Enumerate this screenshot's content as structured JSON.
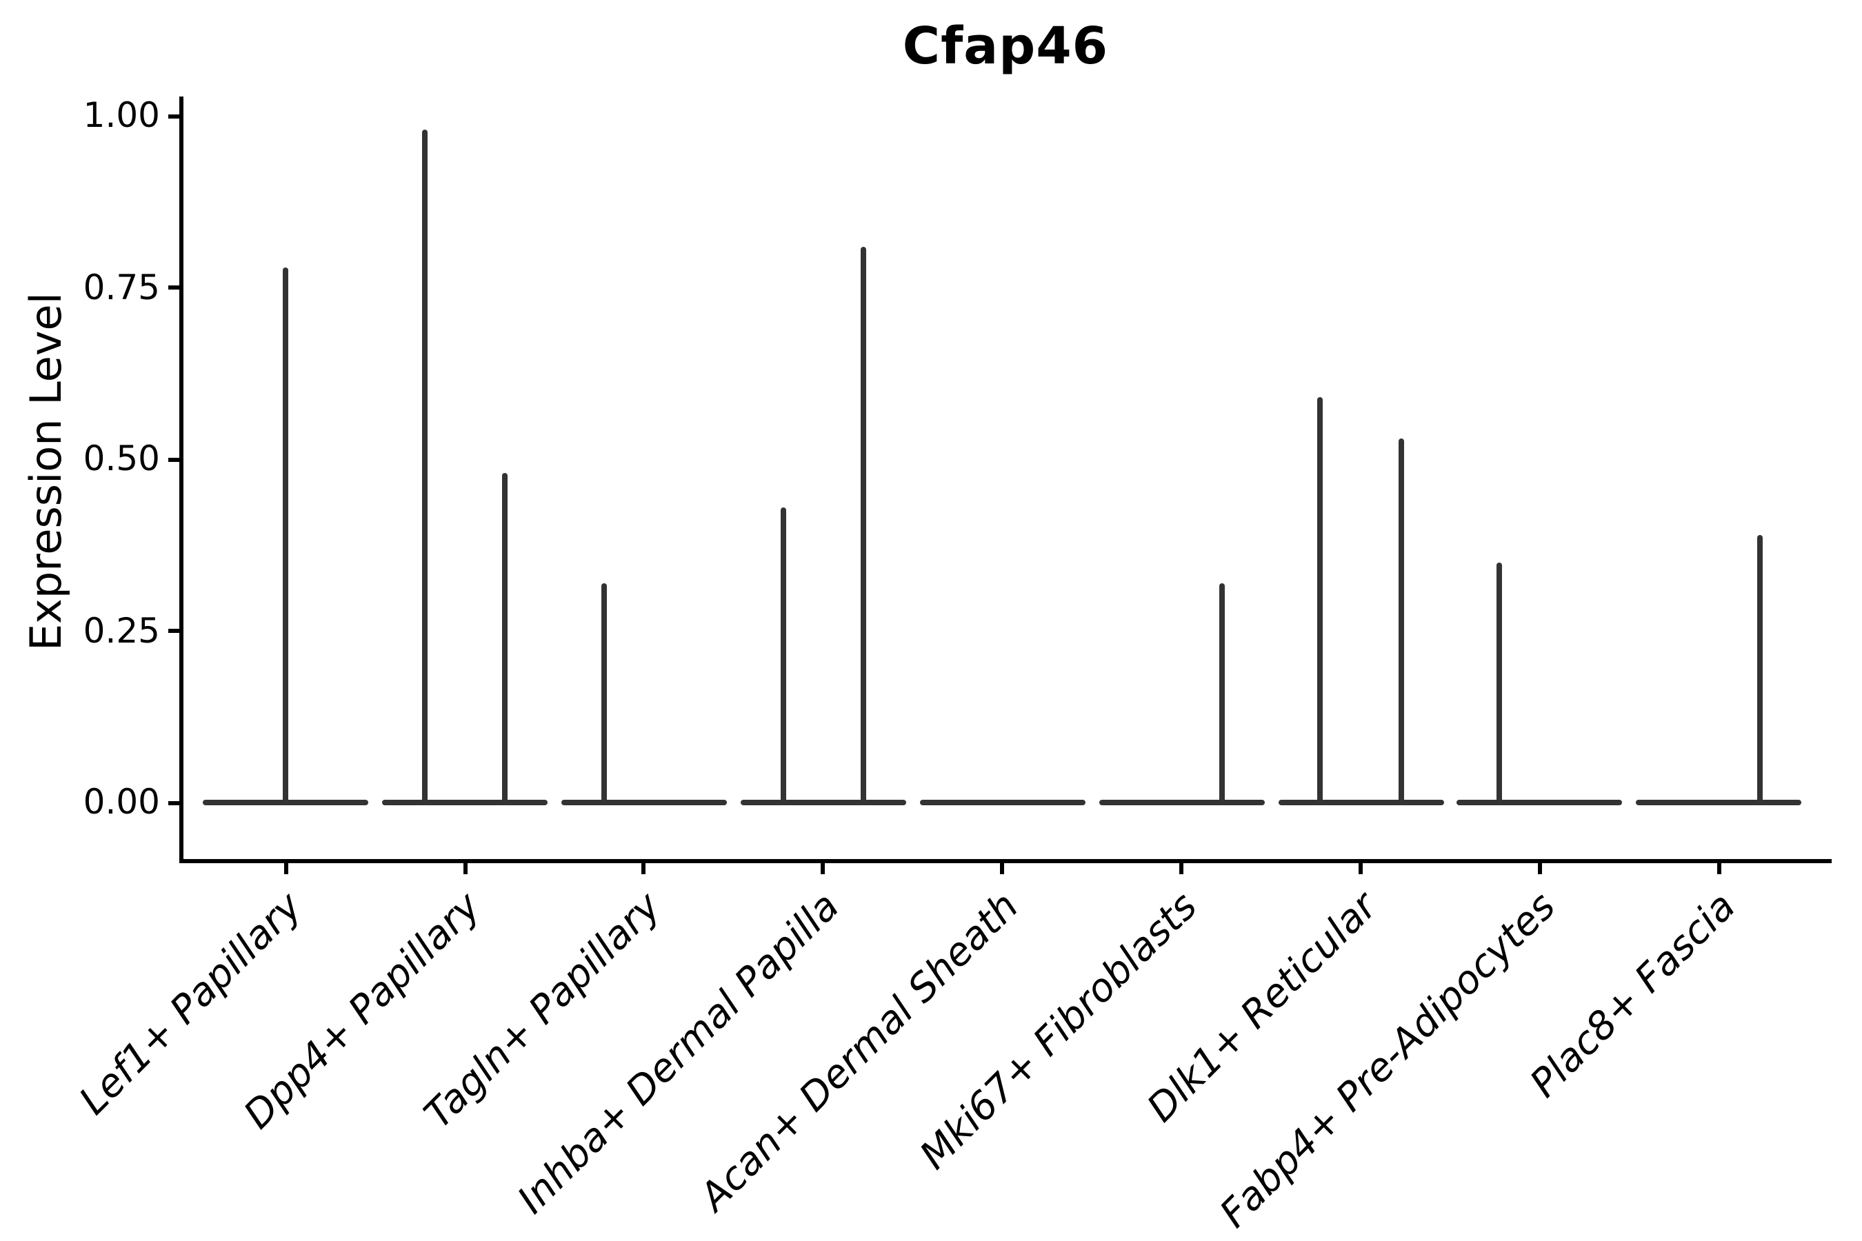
{
  "figure": {
    "background": "#ffffff"
  },
  "chart_data": {
    "type": "violin",
    "title": "Cfap46",
    "ylabel": "Expression Level",
    "xlabel": "",
    "ylim": [
      0,
      1.0
    ],
    "grid": false,
    "legend": "none",
    "style": {
      "line_color": "#333333",
      "axis_color": "#000000",
      "title_bold": true,
      "xtick_label_italic": true,
      "xtick_label_rotation_deg": 45,
      "violin_width_frac": 0.92
    },
    "ytick_labels": [
      "0.00",
      "0.25",
      "0.50",
      "0.75",
      "1.00"
    ],
    "ytick_values": [
      0,
      0.25,
      0.5,
      0.75,
      1.0
    ],
    "categories": [
      "Lef1+ Papillary",
      "Dpp4+ Papillary",
      "Tagln+ Papillary",
      "Inhba+ Dermal Papilla",
      "Acan+ Dermal Sheath",
      "Mki67+ Fibroblasts",
      "Dlk1+ Reticular",
      "Fabp4+ Pre-Adipocytes",
      "Plac8+ Fascia"
    ],
    "series": [
      {
        "category": "Lef1+ Papillary",
        "baseline": 0.0,
        "spikes": [
          {
            "offset": 0.0,
            "max": 0.78
          }
        ]
      },
      {
        "category": "Dpp4+ Papillary",
        "baseline": 0.0,
        "spikes": [
          {
            "offset": -0.225,
            "max": 0.98
          },
          {
            "offset": 0.225,
            "max": 0.48
          }
        ]
      },
      {
        "category": "Tagln+ Papillary",
        "baseline": 0.0,
        "spikes": [
          {
            "offset": -0.225,
            "max": 0.32
          }
        ]
      },
      {
        "category": "Inhba+ Dermal Papilla",
        "baseline": 0.0,
        "spikes": [
          {
            "offset": -0.225,
            "max": 0.43
          },
          {
            "offset": 0.225,
            "max": 0.81
          }
        ]
      },
      {
        "category": "Acan+ Dermal Sheath",
        "baseline": 0.0,
        "spikes": []
      },
      {
        "category": "Mki67+ Fibroblasts",
        "baseline": 0.0,
        "spikes": [
          {
            "offset": 0.225,
            "max": 0.32
          }
        ]
      },
      {
        "category": "Dlk1+ Reticular",
        "baseline": 0.0,
        "spikes": [
          {
            "offset": -0.225,
            "max": 0.59
          },
          {
            "offset": 0.225,
            "max": 0.53
          }
        ]
      },
      {
        "category": "Fabp4+ Pre-Adipocytes",
        "baseline": 0.0,
        "spikes": [
          {
            "offset": -0.225,
            "max": 0.35
          }
        ]
      },
      {
        "category": "Plac8+ Fascia",
        "baseline": 0.0,
        "spikes": [
          {
            "offset": 0.225,
            "max": 0.39
          }
        ]
      }
    ]
  }
}
